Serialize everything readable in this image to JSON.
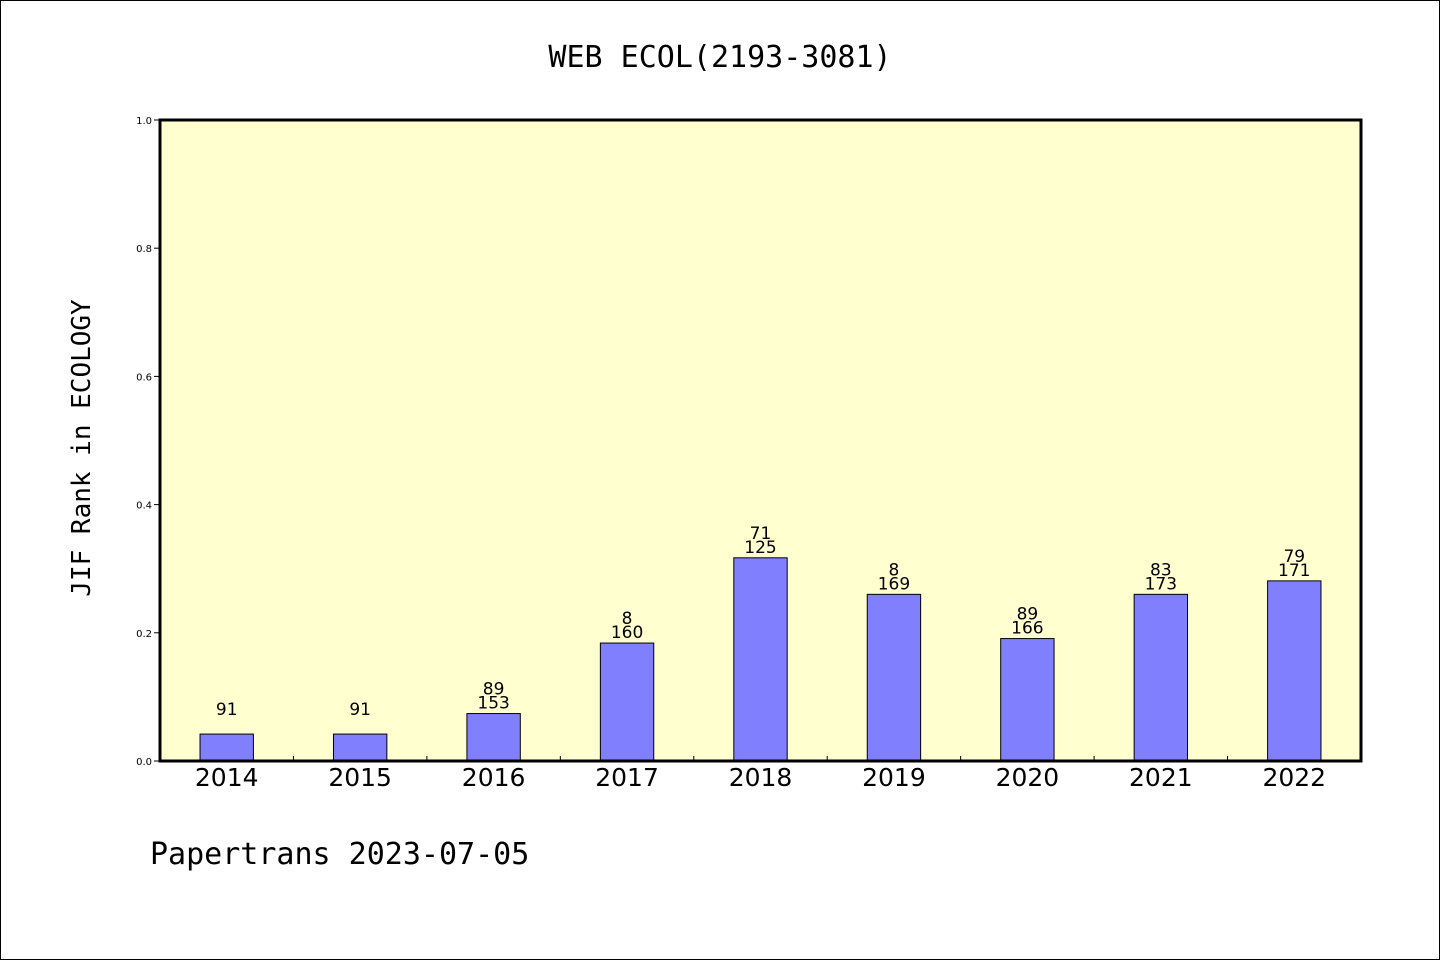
{
  "chart_data": {
    "type": "bar",
    "title": "WEB ECOL(2193-3081)",
    "ylabel": "JIF Rank in ECOLOGY",
    "xlabel": "",
    "categories": [
      "2014",
      "2015",
      "2016",
      "2017",
      "2018",
      "2019",
      "2020",
      "2021",
      "2022"
    ],
    "values": [
      0.042,
      0.042,
      0.074,
      0.184,
      0.317,
      0.26,
      0.191,
      0.26,
      0.281
    ],
    "label_top": [
      "",
      "",
      "89",
      "8",
      "71",
      "8",
      "89",
      "83",
      "79"
    ],
    "label_bottom": [
      "91",
      "91",
      "153",
      "160",
      "125",
      "169",
      "166",
      "173",
      "171"
    ],
    "ylim": [
      0,
      1
    ],
    "yticks": [
      "0.0",
      "0.2",
      "0.4",
      "0.6",
      "0.8",
      "1.0"
    ],
    "grid": false,
    "bar_color": "#8080ff",
    "plot_background": "#ffffd0"
  },
  "footer": {
    "credit": "Papertrans 2023-07-05"
  }
}
